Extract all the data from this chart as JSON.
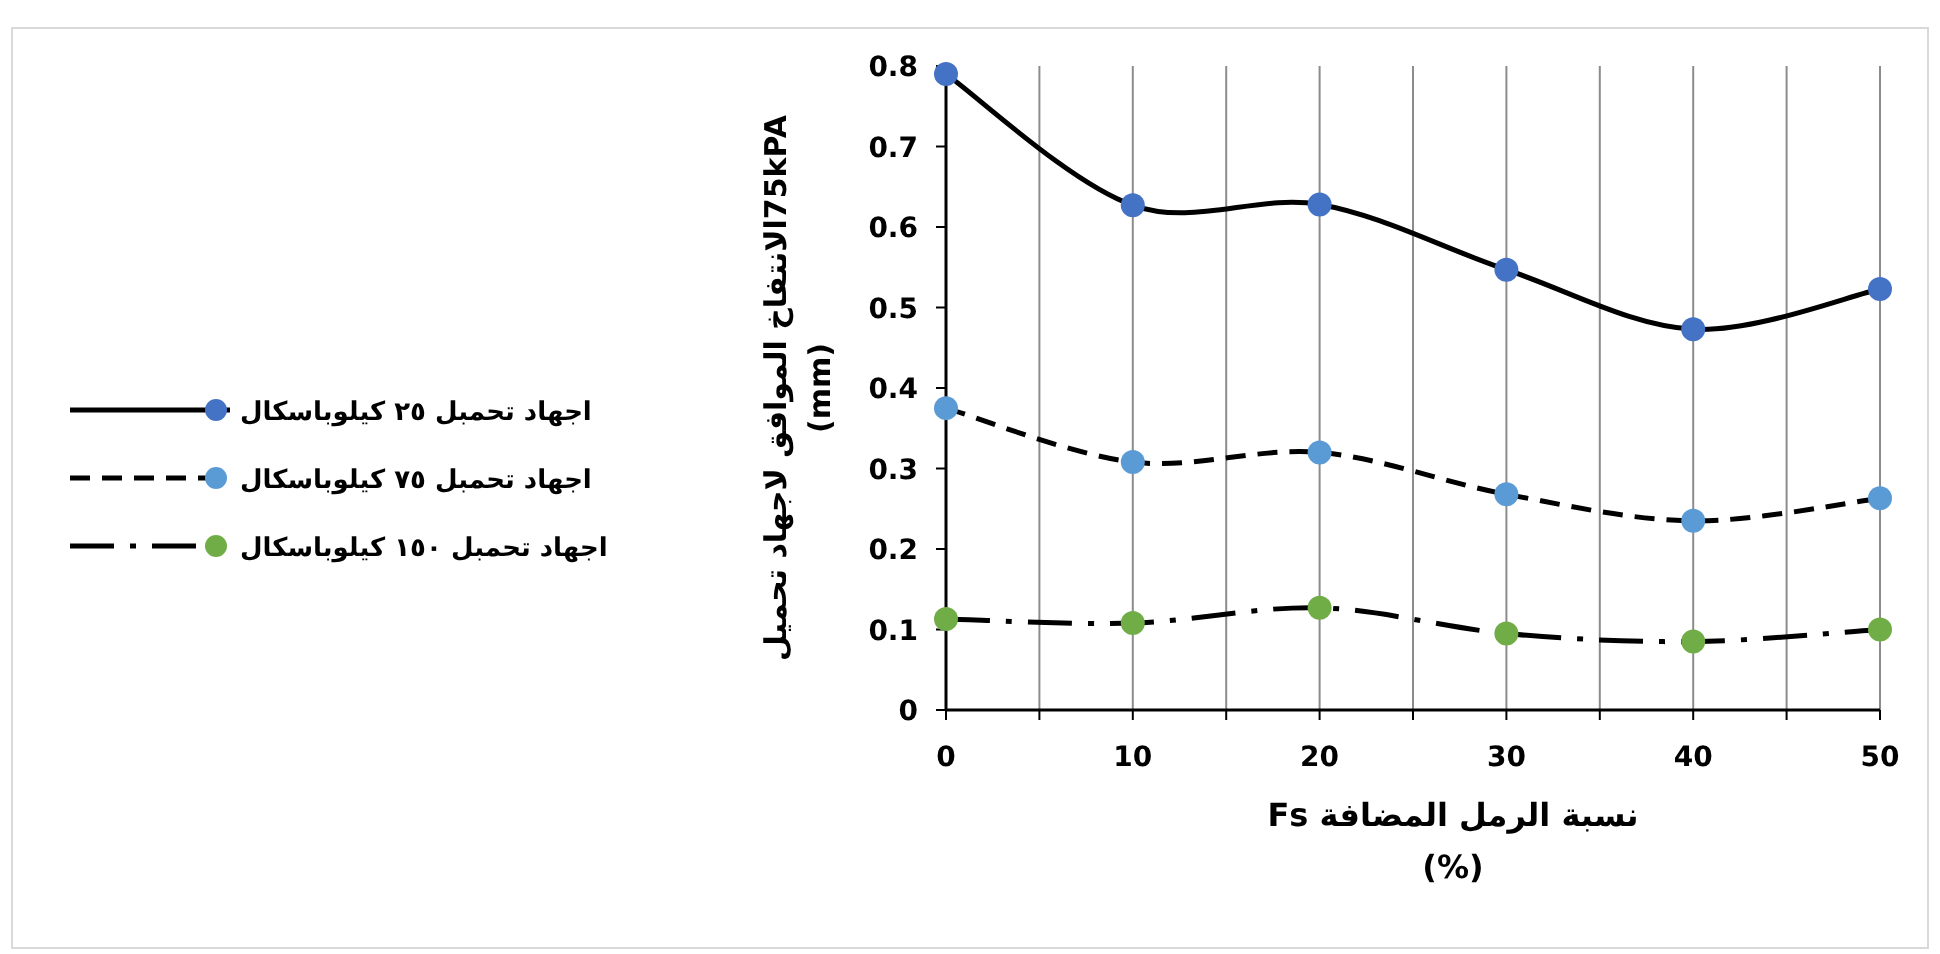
{
  "chart_data": {
    "type": "line",
    "x": [
      0,
      10,
      20,
      30,
      40,
      50
    ],
    "series": [
      {
        "name": "اجهاد تحمبل ٢٥ كيلوباسكال",
        "color": "#4472c4",
        "line_style": "solid",
        "values": [
          0.79,
          0.627,
          0.628,
          0.547,
          0.473,
          0.523
        ]
      },
      {
        "name": "اجهاد تحمبل ٧٥ كيلوباسكال",
        "color": "#5b9bd5",
        "line_style": "dashed",
        "values": [
          0.375,
          0.308,
          0.32,
          0.268,
          0.235,
          0.263
        ]
      },
      {
        "name": "اجهاد تحمبل ١٥٠ كيلوباسكال",
        "color": "#70ad47",
        "line_style": "dashdot",
        "values": [
          0.113,
          0.108,
          0.127,
          0.095,
          0.085,
          0.1
        ]
      }
    ],
    "xlabel": "نسبة الرمل المضافة  Fs\n(%)",
    "ylabel": "75kPAالانتفاخ الموافق لاجهاد تحميل\n(mm)",
    "xlim": [
      0,
      50
    ],
    "xticks": [
      0,
      {
        "value": 5,
        "label": null
      },
      10,
      {
        "value": 15,
        "label": null
      },
      20,
      {
        "value": 25,
        "label": null
      },
      30,
      {
        "value": 35,
        "label": null
      },
      40,
      {
        "value": 45,
        "label": null
      },
      50
    ],
    "ylim": [
      0,
      0.8
    ],
    "yticks": [
      0,
      0.1,
      0.2,
      0.3,
      0.4,
      0.5,
      0.6,
      0.7,
      0.8
    ],
    "grid": "x",
    "legend": "left",
    "marker": "circle"
  }
}
